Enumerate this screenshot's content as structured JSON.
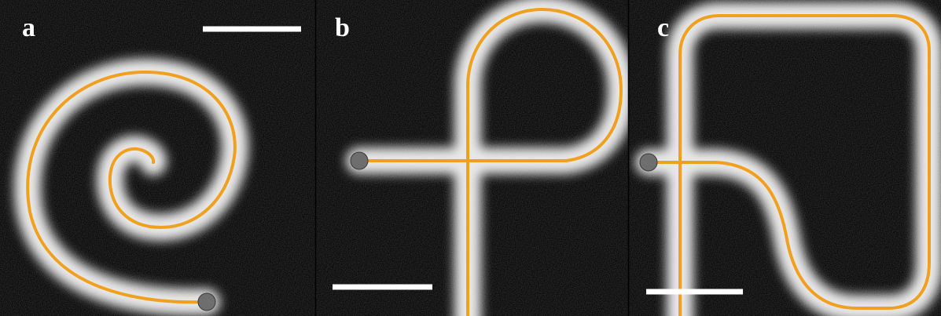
{
  "panels": [
    {
      "label": "a"
    },
    {
      "label": "b"
    },
    {
      "label": "c"
    }
  ]
}
